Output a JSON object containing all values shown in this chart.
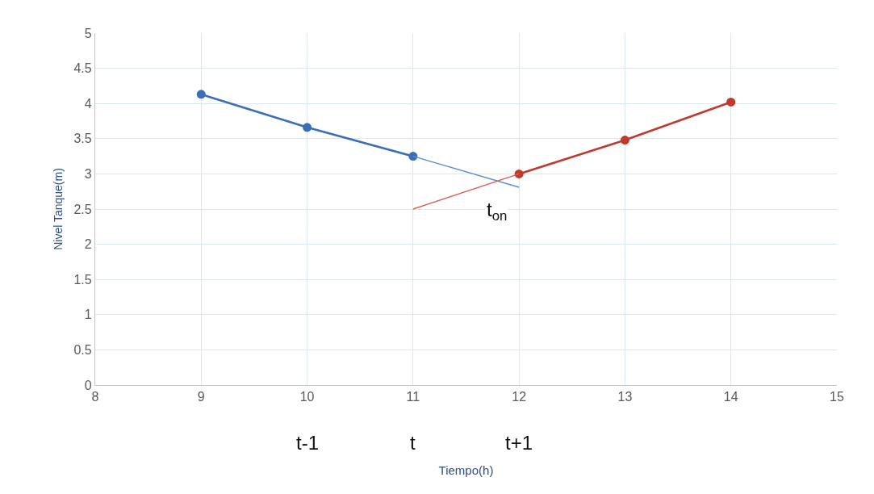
{
  "chart_data": {
    "type": "line",
    "xlabel": "Tiempo(h)",
    "ylabel": "Nivel Tanque(m)",
    "xlim": [
      8,
      15
    ],
    "xticks": [
      8,
      9,
      10,
      11,
      12,
      13,
      14,
      15
    ],
    "ylim": [
      0,
      5
    ],
    "yticks": [
      0,
      0.5,
      1,
      1.5,
      2,
      2.5,
      3,
      3.5,
      4,
      4.5,
      5
    ],
    "grid": true,
    "marker": "circle",
    "line_style": "solid",
    "series": [
      {
        "x": [
          9,
          10,
          11
        ],
        "values": [
          4.13,
          3.66,
          3.25
        ],
        "color": "#3a6fb7"
      },
      {
        "x": [
          11,
          12
        ],
        "values": [
          3.25,
          2.81
        ],
        "color": "#5b8fd0",
        "marker": "none"
      },
      {
        "x": [
          12,
          13,
          14
        ],
        "values": [
          3.0,
          3.48,
          4.02
        ],
        "color": "#c0392f"
      },
      {
        "x": [
          11,
          12
        ],
        "values": [
          2.5,
          3.0
        ],
        "color": "#d35f5a",
        "marker": "none"
      }
    ],
    "annotations": [
      {
        "text": "t$_{on}$",
        "x": 11.79,
        "y": 2.47
      },
      "t-1",
      "t",
      "t+1"
    ]
  }
}
